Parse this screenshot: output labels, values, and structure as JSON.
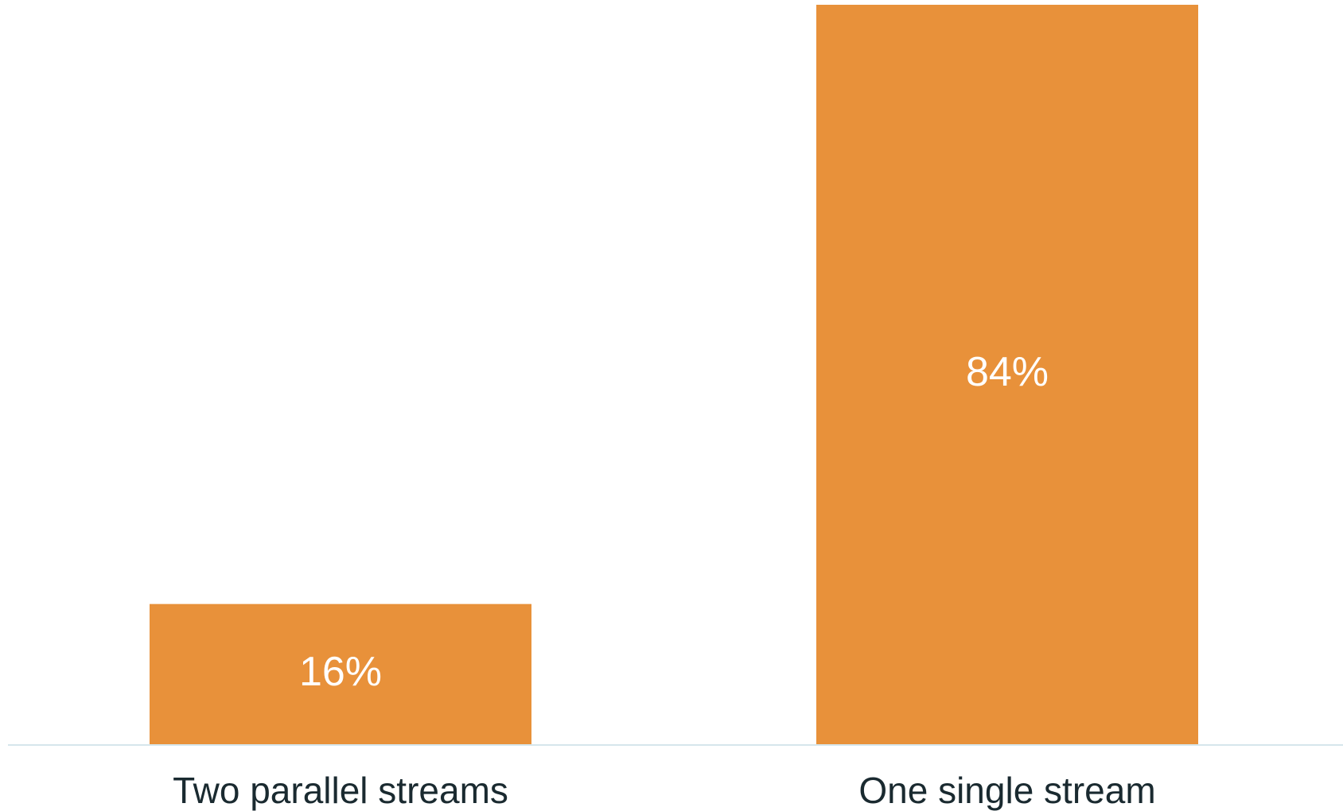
{
  "chart_data": {
    "type": "bar",
    "title": "",
    "xlabel": "",
    "ylabel": "",
    "categories": [
      "Two parallel streams",
      "One single stream"
    ],
    "values": [
      16,
      84
    ],
    "value_labels": [
      "16%",
      "84%"
    ],
    "ylim": [
      0,
      84
    ],
    "grid": false,
    "legend": "none",
    "colors": {
      "bar": "#E8913A",
      "bar_label": "#FFFFFF",
      "axis_line": "#D6E6EC",
      "category_text": "#1A2A30"
    }
  }
}
